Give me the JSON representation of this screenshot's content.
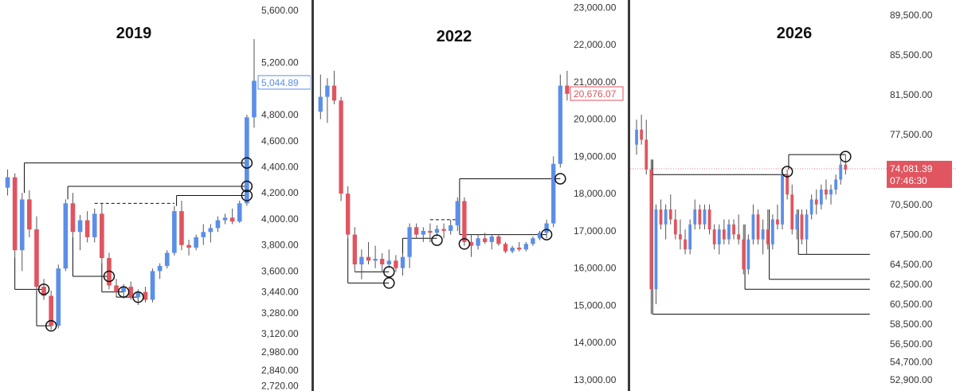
{
  "colors": {
    "up": "#5b8fe8",
    "down": "#e0555f",
    "wick": "#555555",
    "level": "#111111"
  },
  "chart_data": [
    {
      "type": "candlestick",
      "title": "2019",
      "ylim": [
        2680,
        5680
      ],
      "yticks": [
        "5,600.00",
        "5,200.00",
        "4,800.00",
        "4,600.00",
        "4,400.00",
        "4,200.00",
        "4,000.00",
        "3,800.00",
        "3,600.00",
        "3,440.00",
        "3,280.00",
        "3,120.00",
        "2,980.00",
        "2,840.00",
        "2,720.00"
      ],
      "ytick_values": [
        5600,
        5200,
        4800,
        4600,
        4400,
        4200,
        4000,
        3800,
        3600,
        3440,
        3280,
        3120,
        2980,
        2840,
        2720
      ],
      "last_price": "5,044.89",
      "last_price_value": 5044.89,
      "last_price_style": "up",
      "candles": [
        [
          4240,
          4380,
          4180,
          4320
        ],
        [
          4320,
          4350,
          3700,
          3760
        ],
        [
          3760,
          4200,
          3600,
          4150
        ],
        [
          4150,
          4220,
          3860,
          3920
        ],
        [
          3920,
          4020,
          3450,
          3480
        ],
        [
          3480,
          3540,
          3380,
          3410
        ],
        [
          3410,
          3450,
          3150,
          3180
        ],
        [
          3180,
          3650,
          3160,
          3620
        ],
        [
          3620,
          4150,
          3600,
          4120
        ],
        [
          4120,
          4200,
          3860,
          3900
        ],
        [
          3900,
          4030,
          3760,
          3990
        ],
        [
          3990,
          4060,
          3820,
          3860
        ],
        [
          3860,
          4080,
          3820,
          4040
        ],
        [
          4040,
          4120,
          3660,
          3700
        ],
        [
          3700,
          3740,
          3460,
          3490
        ],
        [
          3490,
          3540,
          3410,
          3440
        ],
        [
          3440,
          3500,
          3390,
          3480
        ],
        [
          3480,
          3520,
          3380,
          3400
        ],
        [
          3400,
          3460,
          3340,
          3440
        ],
        [
          3440,
          3480,
          3360,
          3380
        ],
        [
          3380,
          3620,
          3360,
          3600
        ],
        [
          3600,
          3660,
          3540,
          3640
        ],
        [
          3640,
          3760,
          3620,
          3740
        ],
        [
          3740,
          4100,
          3720,
          4060
        ],
        [
          4060,
          4140,
          3760,
          3800
        ],
        [
          3800,
          3840,
          3720,
          3780
        ],
        [
          3780,
          3880,
          3760,
          3860
        ],
        [
          3860,
          3960,
          3800,
          3900
        ],
        [
          3900,
          3960,
          3820,
          3930
        ],
        [
          3930,
          4020,
          3900,
          3990
        ],
        [
          3990,
          4040,
          3960,
          4010
        ],
        [
          4010,
          4080,
          3960,
          3980
        ],
        [
          3980,
          4140,
          3970,
          4120
        ],
        [
          4120,
          4800,
          4100,
          4780
        ],
        [
          4780,
          5380,
          4700,
          5060
        ]
      ],
      "levels": [
        {
          "y": 4430,
          "x_from": 2,
          "x_to": 33,
          "style": "solid",
          "anchor": "left"
        },
        {
          "y": 4250,
          "x_from": 8,
          "x_to": 33,
          "style": "solid",
          "anchor": "left"
        },
        {
          "y": 4180,
          "x_from": 23,
          "x_to": 33,
          "style": "solid",
          "anchor": "left"
        },
        {
          "y": 4120,
          "x_from": 12,
          "x_to": 23,
          "style": "dashed",
          "anchor": "none"
        },
        {
          "y": 3460,
          "x_from": 1,
          "x_to": 5,
          "style": "solid",
          "anchor": "right"
        },
        {
          "y": 3180,
          "x_from": 4,
          "x_to": 6,
          "style": "solid",
          "anchor": "right"
        },
        {
          "y": 3560,
          "x_from": 9,
          "x_to": 14,
          "style": "solid",
          "anchor": "right"
        },
        {
          "y": 3440,
          "x_from": 13,
          "x_to": 16,
          "style": "solid",
          "anchor": "right"
        },
        {
          "y": 3400,
          "x_from": 15,
          "x_to": 18,
          "style": "solid",
          "anchor": "right"
        }
      ],
      "circles": [
        {
          "x": 33,
          "y": 4430
        },
        {
          "x": 33,
          "y": 4250
        },
        {
          "x": 33,
          "y": 4180
        },
        {
          "x": 5,
          "y": 3460
        },
        {
          "x": 6,
          "y": 3180
        },
        {
          "x": 14,
          "y": 3560
        },
        {
          "x": 16,
          "y": 3440
        },
        {
          "x": 18,
          "y": 3400
        }
      ]
    },
    {
      "type": "candlestick",
      "title": "2022",
      "ylim": [
        12700,
        23200
      ],
      "yticks": [
        "23,000.00",
        "22,000.00",
        "21,000.00",
        "20,000.00",
        "19,000.00",
        "18,000.00",
        "17,000.00",
        "16,000.00",
        "15,000.00",
        "14,000.00",
        "13,000.00"
      ],
      "ytick_values": [
        23000,
        22000,
        21000,
        20000,
        19000,
        18000,
        17000,
        16000,
        15000,
        14000,
        13000
      ],
      "last_price": "20,676.07",
      "last_price_value": 20676.07,
      "last_price_style": "down",
      "candles": [
        [
          20200,
          21200,
          20000,
          20600
        ],
        [
          20600,
          21100,
          19900,
          20900
        ],
        [
          20900,
          21300,
          20400,
          20500
        ],
        [
          20500,
          20600,
          17800,
          18000
        ],
        [
          18000,
          18200,
          16800,
          16900
        ],
        [
          16900,
          17100,
          15900,
          16100
        ],
        [
          16100,
          16500,
          15700,
          16300
        ],
        [
          16300,
          16700,
          16100,
          16200
        ],
        [
          16200,
          16600,
          16000,
          16250
        ],
        [
          16250,
          16400,
          15900,
          16100
        ],
        [
          16100,
          16500,
          16000,
          16200
        ],
        [
          16200,
          16350,
          15900,
          16000
        ],
        [
          16000,
          16400,
          15800,
          16300
        ],
        [
          16300,
          17200,
          16000,
          17100
        ],
        [
          17100,
          17200,
          16800,
          16900
        ],
        [
          16900,
          17100,
          16700,
          17000
        ],
        [
          17000,
          17200,
          16700,
          16950
        ],
        [
          16950,
          17150,
          16850,
          17050
        ],
        [
          17050,
          17200,
          16800,
          17000
        ],
        [
          17000,
          17300,
          16900,
          17150
        ],
        [
          17150,
          17900,
          17000,
          17800
        ],
        [
          17800,
          17900,
          16600,
          16700
        ],
        [
          16700,
          16900,
          16300,
          16600
        ],
        [
          16600,
          16900,
          16500,
          16800
        ],
        [
          16800,
          16950,
          16650,
          16700
        ],
        [
          16700,
          16900,
          16500,
          16850
        ],
        [
          16850,
          16900,
          16600,
          16650
        ],
        [
          16650,
          16700,
          16400,
          16450
        ],
        [
          16450,
          16600,
          16400,
          16550
        ],
        [
          16550,
          16700,
          16450,
          16500
        ],
        [
          16500,
          16700,
          16450,
          16650
        ],
        [
          16650,
          16850,
          16600,
          16800
        ],
        [
          16800,
          17000,
          16750,
          16950
        ],
        [
          16950,
          17300,
          16800,
          17200
        ],
        [
          17200,
          19000,
          17100,
          18800
        ],
        [
          18800,
          21200,
          18700,
          20900
        ],
        [
          20900,
          21300,
          20500,
          20680
        ]
      ],
      "levels": [
        {
          "y": 18400,
          "x_from": 20,
          "x_to": 35,
          "style": "solid",
          "anchor": "left"
        },
        {
          "y": 17300,
          "x_from": 16,
          "x_to": 20,
          "style": "dashed",
          "anchor": "none"
        },
        {
          "y": 16900,
          "x_from": 20,
          "x_to": 33,
          "style": "solid",
          "anchor": "left"
        },
        {
          "y": 16800,
          "x_from": 12,
          "x_to": 17,
          "style": "solid",
          "anchor": "right"
        },
        {
          "y": 15900,
          "x_from": 5,
          "x_to": 10,
          "style": "solid",
          "anchor": "right"
        },
        {
          "y": 15600,
          "x_from": 4,
          "x_to": 10,
          "style": "solid",
          "anchor": "right"
        }
      ],
      "circles": [
        {
          "x": 35,
          "y": 18400
        },
        {
          "x": 33,
          "y": 16900
        },
        {
          "x": 17,
          "y": 16750
        },
        {
          "x": 21,
          "y": 16650
        },
        {
          "x": 10,
          "y": 15900
        },
        {
          "x": 10,
          "y": 15600
        }
      ]
    },
    {
      "type": "candlestick",
      "title": "2026",
      "ylim": [
        51800,
        91000
      ],
      "yticks": [
        "89,500.00",
        "85,500.00",
        "81,500.00",
        "77,500.00",
        "70,500.00",
        "67,500.00",
        "64,500.00",
        "62,500.00",
        "60,500.00",
        "58,500.00",
        "56,500.00",
        "54,700.00",
        "52,900.00"
      ],
      "ytick_values": [
        89500,
        85500,
        81500,
        77500,
        70500,
        67500,
        64500,
        62500,
        60500,
        58500,
        56500,
        54700,
        52900
      ],
      "last_price": "74,081.39",
      "last_price_value": 74081.39,
      "countdown": "07:46:30",
      "last_price_style": "down-filled",
      "candles": [
        [
          76500,
          79000,
          75500,
          78000
        ],
        [
          78000,
          79500,
          76500,
          77000
        ],
        [
          77000,
          79000,
          73500,
          74000
        ],
        [
          74000,
          75000,
          59500,
          62000
        ],
        [
          62000,
          70500,
          60500,
          70000
        ],
        [
          70000,
          71000,
          68000,
          68500
        ],
        [
          68500,
          70500,
          67000,
          70000
        ],
        [
          70000,
          71500,
          68500,
          69000
        ],
        [
          69000,
          70000,
          67000,
          67500
        ],
        [
          67500,
          69000,
          66000,
          67000
        ],
        [
          67000,
          68000,
          65500,
          66000
        ],
        [
          66000,
          69000,
          65500,
          68500
        ],
        [
          68500,
          71000,
          68000,
          70000
        ],
        [
          70000,
          70500,
          68000,
          68500
        ],
        [
          68500,
          70500,
          68000,
          70000
        ],
        [
          70000,
          70500,
          67500,
          68000
        ],
        [
          68000,
          68500,
          66000,
          66500
        ],
        [
          66500,
          68500,
          65500,
          68000
        ],
        [
          68000,
          69000,
          66500,
          67000
        ],
        [
          67000,
          69000,
          66500,
          68500
        ],
        [
          68500,
          69000,
          67000,
          67500
        ],
        [
          67500,
          69500,
          66500,
          67000
        ],
        [
          67000,
          68500,
          63500,
          64000
        ],
        [
          64000,
          67500,
          63500,
          67000
        ],
        [
          67000,
          70500,
          66500,
          69500
        ],
        [
          69500,
          70000,
          66500,
          67000
        ],
        [
          67000,
          69000,
          65500,
          68000
        ],
        [
          68000,
          70000,
          66000,
          66500
        ],
        [
          66500,
          69500,
          66000,
          69000
        ],
        [
          69000,
          70500,
          68000,
          68500
        ],
        [
          68500,
          74000,
          68000,
          73500
        ],
        [
          73500,
          74000,
          71000,
          71500
        ],
        [
          71500,
          72500,
          67500,
          68000
        ],
        [
          68000,
          70000,
          67000,
          69500
        ],
        [
          69500,
          70000,
          66500,
          67000
        ],
        [
          67000,
          70000,
          65500,
          69500
        ],
        [
          69500,
          71500,
          69000,
          71000
        ],
        [
          71000,
          72000,
          69500,
          70500
        ],
        [
          70500,
          72500,
          70000,
          72000
        ],
        [
          72000,
          73000,
          71000,
          71500
        ],
        [
          71500,
          72500,
          70500,
          72000
        ],
        [
          72000,
          73500,
          71500,
          73000
        ],
        [
          73000,
          75000,
          72500,
          74500
        ],
        [
          74500,
          75500,
          73500,
          74000
        ]
      ],
      "levels": [
        {
          "y": 73500,
          "x_from": 3,
          "x_to": 31,
          "style": "solid",
          "anchor": "left"
        },
        {
          "y": 75500,
          "x_from": 31,
          "x_to": 43,
          "style": "solid",
          "anchor": "left"
        },
        {
          "y": 65500,
          "x_from": 33,
          "x_to": 48,
          "style": "solid",
          "anchor": "left"
        },
        {
          "y": 63000,
          "x_from": 27,
          "x_to": 48,
          "style": "solid",
          "anchor": "left"
        },
        {
          "y": 62000,
          "x_from": 22,
          "x_to": 48,
          "style": "solid",
          "anchor": "left"
        },
        {
          "y": 59500,
          "x_from": 3,
          "x_to": 48,
          "style": "solid",
          "anchor": "left"
        }
      ],
      "circles": [
        {
          "x": 31,
          "y": 73800
        },
        {
          "x": 43,
          "y": 75300
        }
      ],
      "last_price_line": true
    }
  ]
}
